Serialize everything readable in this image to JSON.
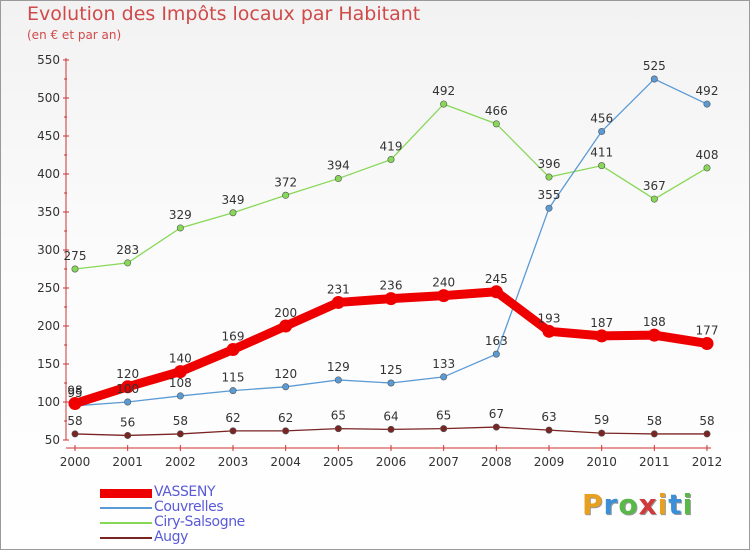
{
  "title": "Evolution des Impôts locaux par Habitant",
  "subtitle": "(en € et par an)",
  "logo": {
    "text": "Proxiti",
    "colors": [
      "#e8a020",
      "#3a8fd8",
      "#58b848",
      "#d03a3a"
    ]
  },
  "chart_data": {
    "type": "line",
    "x": [
      "2000",
      "2001",
      "2002",
      "2003",
      "2004",
      "2005",
      "2006",
      "2007",
      "2008",
      "2009",
      "2010",
      "2011",
      "2012"
    ],
    "ylim": [
      50,
      550
    ],
    "yticks": [
      50,
      100,
      150,
      200,
      250,
      300,
      350,
      400,
      450,
      500,
      550
    ],
    "grid": false,
    "legend_position": "bottom-left",
    "series": [
      {
        "name": "VASSENY",
        "color": "#ee0000",
        "width": 9,
        "values": [
          98,
          120,
          140,
          169,
          200,
          231,
          236,
          240,
          245,
          193,
          187,
          188,
          177
        ]
      },
      {
        "name": "Couvrelles",
        "color": "#5b9bd5",
        "width": 1.3,
        "values": [
          95,
          100,
          108,
          115,
          120,
          129,
          125,
          133,
          163,
          355,
          456,
          525,
          492
        ]
      },
      {
        "name": "Ciry-Salsogne",
        "color": "#88d858",
        "width": 1.3,
        "values": [
          275,
          283,
          329,
          349,
          372,
          394,
          419,
          492,
          466,
          396,
          411,
          367,
          408
        ]
      },
      {
        "name": "Augy",
        "color": "#7a2424",
        "width": 1.3,
        "values": [
          58,
          56,
          58,
          62,
          62,
          65,
          64,
          65,
          67,
          63,
          59,
          58,
          58
        ]
      }
    ]
  }
}
